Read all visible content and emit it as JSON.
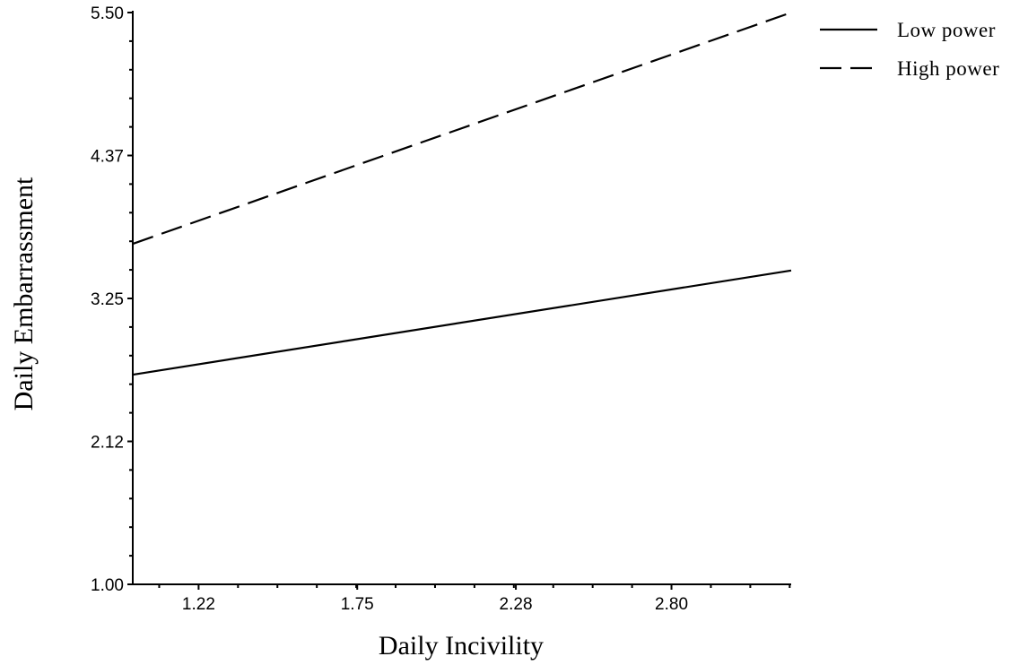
{
  "chart_data": {
    "type": "line",
    "title": "",
    "xlabel": "Daily Incivility",
    "ylabel": "Daily Embarrassment",
    "xlim": [
      1.0,
      3.2
    ],
    "ylim": [
      1.0,
      5.5
    ],
    "x_ticks": [
      "1.22",
      "1.75",
      "2.28",
      "2.80"
    ],
    "y_ticks": [
      "1.00",
      "2.12",
      "3.25",
      "4.37",
      "5.50"
    ],
    "grid": false,
    "legend_position": "top-right",
    "series": [
      {
        "name": "Low power",
        "style": "solid",
        "color": "#000000",
        "x": [
          1.0,
          3.2
        ],
        "y": [
          2.65,
          3.47
        ]
      },
      {
        "name": "High power",
        "style": "dashed",
        "color": "#000000",
        "x": [
          1.0,
          3.2
        ],
        "y": [
          3.68,
          5.5
        ]
      }
    ]
  }
}
